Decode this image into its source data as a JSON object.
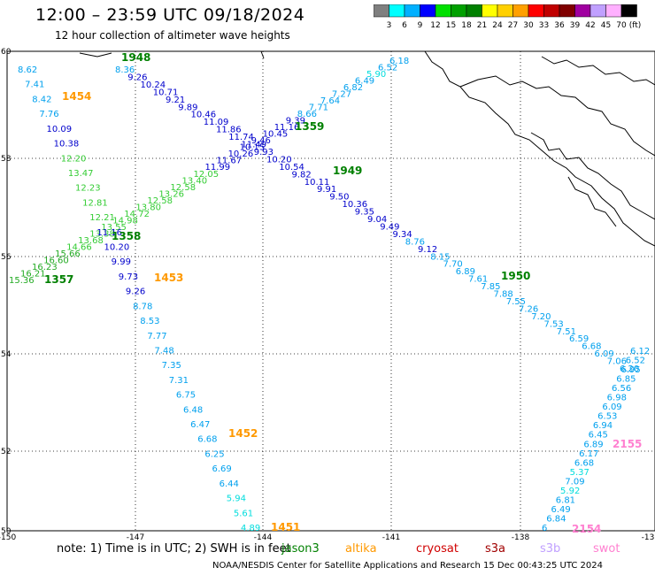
{
  "title": "12:00 – 23:59 UTC 09/18/2024",
  "subtitle": "12 hour collection of altimeter wave heights",
  "colorbar": {
    "unit": "(ft)",
    "labels": [
      "3",
      "6",
      "9",
      "12",
      "15",
      "18",
      "21",
      "24",
      "27",
      "30",
      "33",
      "36",
      "39",
      "42",
      "45",
      "70"
    ],
    "colors": [
      "#7f7f7f",
      "#00ffff",
      "#00b0ff",
      "#0000ff",
      "#00e000",
      "#00a000",
      "#008000",
      "#ffff00",
      "#ffd000",
      "#ffa000",
      "#ff0000",
      "#c00000",
      "#800000",
      "#a000a0",
      "#c0a0ff",
      "#ffb0ff",
      "#000000"
    ]
  },
  "axes": {
    "lat_labels": [
      "60",
      "58",
      "56",
      "54",
      "52",
      "50"
    ],
    "lon_labels": [
      "-150",
      "-147",
      "-144",
      "-141",
      "-138",
      "-13"
    ]
  },
  "times": [
    {
      "text": "1948",
      "color": "#008000"
    },
    {
      "text": "1454",
      "color": "#ff9900"
    },
    {
      "text": "1359",
      "color": "#008000"
    },
    {
      "text": "1949",
      "color": "#008000"
    },
    {
      "text": "1358",
      "color": "#008000"
    },
    {
      "text": "1357",
      "color": "#008000"
    },
    {
      "text": "1453",
      "color": "#ff9900"
    },
    {
      "text": "1950",
      "color": "#008000"
    },
    {
      "text": "1452",
      "color": "#ff9900"
    },
    {
      "text": "2155",
      "color": "#ff80d0"
    },
    {
      "text": "1451",
      "color": "#ff9900"
    },
    {
      "text": "2154",
      "color": "#ff80d0"
    }
  ],
  "tracks": {
    "track_a": [
      "8.36",
      "9.26",
      "10.24",
      "10.71",
      "9.21",
      "9.89",
      "10.46",
      "11.09",
      "11.86",
      "11.74",
      "11.49",
      "9.93",
      "10.20",
      "10.54",
      "9.82",
      "10.11",
      "9.91",
      "9.50",
      "10.36",
      "9.35",
      "9.04",
      "9.49",
      "9.34",
      "8.76",
      "9.12",
      "8.15",
      "7.70",
      "6.89",
      "7.61",
      "7.85",
      "7.88",
      "7.55",
      "7.26",
      "7.20",
      "7.53",
      "7.51",
      "6.59",
      "6.68",
      "6.09",
      "7.06",
      "6.20"
    ],
    "track_b": [
      "6.18",
      "6.52",
      "5.90",
      "6.49",
      "6.82",
      "7.27",
      "7.64",
      "7.71",
      "8.66",
      "9.39",
      "11.16",
      "10.45",
      "9.46",
      "10.15",
      "10.26",
      "11.67",
      "11.99",
      "12.05",
      "13.40",
      "12.58",
      "13.26",
      "12.58",
      "13.80",
      "14.72",
      "14.98",
      "13.55",
      "13.38",
      "13.68",
      "14.66",
      "15.66",
      "16.60",
      "16.23",
      "16.21",
      "15.36"
    ],
    "track_c": [
      "8.62",
      "7.41",
      "8.42",
      "7.76",
      "10.09",
      "10.38",
      "12.20",
      "13.47",
      "12.23",
      "12.81",
      "12.21",
      "11.16",
      "10.20",
      "9.99",
      "9.73",
      "9.26",
      "8.78",
      "8.53",
      "7.77",
      "7.48",
      "7.35",
      "7.31",
      "6.75",
      "6.48",
      "6.47",
      "6.68",
      "6.25",
      "6.69",
      "6.44",
      "5.94",
      "5.61",
      "4.89"
    ],
    "track_d": [
      "6.12",
      "6.52",
      "6.95",
      "6.85",
      "6.56",
      "6.98",
      "6.09",
      "6.53",
      "6.94",
      "6.45",
      "6.89",
      "6.17",
      "6.68",
      "5.37",
      "7.09",
      "5.92",
      "6.81",
      "6.49",
      "6.84",
      "6"
    ]
  },
  "note": "note:  1) Time is in UTC;  2) SWH is in feet",
  "legend_satellites": [
    {
      "text": "jason3",
      "color": "#008000"
    },
    {
      "text": "altika",
      "color": "#ff9900"
    },
    {
      "text": "cryosat",
      "color": "#d00000"
    },
    {
      "text": "s3a",
      "color": "#a00000"
    },
    {
      "text": "s3b",
      "color": "#c0a0ff"
    },
    {
      "text": "swot",
      "color": "#ff80d0"
    }
  ],
  "footer": "NOAA/NESDIS Center for Satellite Applications and Research    15 Dec 00:43:25 UTC 2024"
}
